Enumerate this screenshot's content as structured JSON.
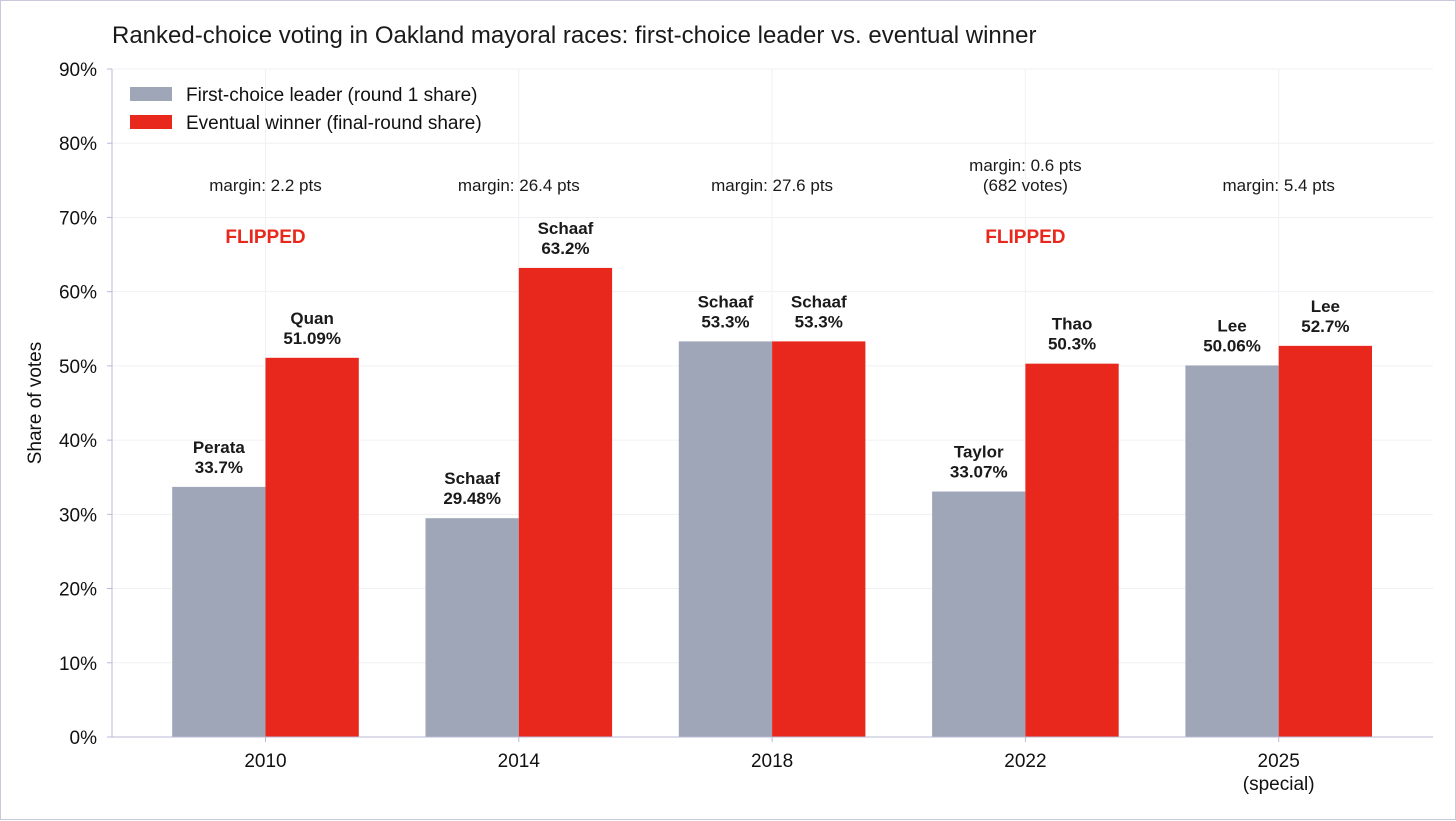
{
  "chart_data": {
    "type": "bar",
    "title": "Ranked-choice voting in Oakland mayoral races: first-choice leader vs. eventual winner",
    "ylabel": "Share of votes",
    "xlabel": "",
    "ylim": [
      0,
      90
    ],
    "yticks": [
      "0%",
      "10%",
      "20%",
      "30%",
      "40%",
      "50%",
      "60%",
      "70%",
      "80%",
      "90%"
    ],
    "ytick_values": [
      0,
      10,
      20,
      30,
      40,
      50,
      60,
      70,
      80,
      90
    ],
    "grid": true,
    "legend_position": "top-left",
    "categories": [
      {
        "line1": "2010",
        "line2": ""
      },
      {
        "line1": "2014",
        "line2": ""
      },
      {
        "line1": "2018",
        "line2": ""
      },
      {
        "line1": "2022",
        "line2": ""
      },
      {
        "line1": "2025",
        "line2": "(special)"
      }
    ],
    "series": [
      {
        "name": "First-choice leader (round 1 share)",
        "color": "#9fa6b7",
        "values": [
          33.7,
          29.48,
          53.3,
          33.07,
          50.06
        ],
        "names": [
          "Perata",
          "Schaaf",
          "Schaaf",
          "Taylor",
          "Lee"
        ],
        "value_labels": [
          "33.7%",
          "29.48%",
          "53.3%",
          "33.07%",
          "50.06%"
        ]
      },
      {
        "name": "Eventual winner (final-round share)",
        "color": "#e8281c",
        "values": [
          51.09,
          63.2,
          53.3,
          50.3,
          52.7
        ],
        "names": [
          "Quan",
          "Schaaf",
          "Schaaf",
          "Thao",
          "Lee"
        ],
        "value_labels": [
          "51.09%",
          "63.2%",
          "53.3%",
          "50.3%",
          "52.7%"
        ]
      }
    ],
    "annotations": [
      {
        "lines": [
          "margin: 2.2 pts"
        ],
        "flipped": "FLIPPED"
      },
      {
        "lines": [
          "margin: 26.4 pts"
        ],
        "flipped": ""
      },
      {
        "lines": [
          "margin: 27.6 pts"
        ],
        "flipped": ""
      },
      {
        "lines": [
          "margin: 0.6 pts",
          "(682 votes)"
        ],
        "flipped": "FLIPPED"
      },
      {
        "lines": [
          "margin: 5.4 pts"
        ],
        "flipped": ""
      }
    ],
    "flipped_color": "#e8281c",
    "axis_color": "#b9b9d6",
    "grid_color": "#f0f0f4"
  }
}
